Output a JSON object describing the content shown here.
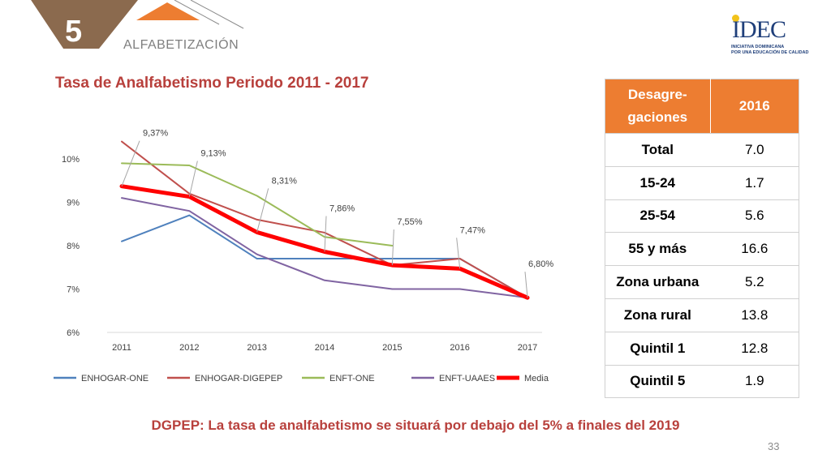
{
  "header": {
    "section_number": "5",
    "section_label": "ALFABETIZACIÓN",
    "accent_brown": "#8b6a4e",
    "accent_orange": "#ed7d31"
  },
  "logo": {
    "name": "IDEC",
    "tagline_line1": "INICIATIVA DOMINICANA",
    "tagline_line2": "POR UNA EDUCACIÓN DE CALIDAD"
  },
  "chart_title": "Tasa de Analfabetismo Periodo 2011 - 2017",
  "chart_data": {
    "type": "line",
    "title": "Tasa de Analfabetismo Periodo 2011 - 2017",
    "x": [
      "2011",
      "2012",
      "2013",
      "2014",
      "2015",
      "2016",
      "2017"
    ],
    "ylim": [
      6,
      10
    ],
    "yticks": [
      "6%",
      "7%",
      "8%",
      "9%",
      "10%"
    ],
    "grid": false,
    "legend_position": "bottom",
    "series": [
      {
        "name": "ENHOGAR-ONE",
        "color": "#4f81bd",
        "width": 2,
        "values": [
          8.1,
          8.7,
          7.7,
          7.7,
          7.7,
          7.7,
          6.8
        ]
      },
      {
        "name": "ENHOGAR-DIGEPEP",
        "color": "#c0504d",
        "width": 2,
        "values": [
          10.4,
          9.2,
          8.6,
          8.3,
          7.55,
          7.7,
          6.8
        ]
      },
      {
        "name": "ENFT-ONE",
        "color": "#9bbb59",
        "width": 2,
        "values": [
          9.9,
          9.85,
          9.15,
          8.2,
          8.0,
          null,
          null
        ]
      },
      {
        "name": "ENFT-UAAES",
        "color": "#8064a2",
        "width": 2,
        "values": [
          9.1,
          8.8,
          7.8,
          7.2,
          7.0,
          7.0,
          6.8
        ]
      },
      {
        "name": "Media",
        "color": "#ff0000",
        "width": 5,
        "values": [
          9.37,
          9.13,
          8.31,
          7.86,
          7.55,
          7.47,
          6.8
        ]
      }
    ],
    "data_labels": [
      "9,37%",
      "9,13%",
      "8,31%",
      "7,86%",
      "7,55%",
      "7,47%",
      "6,80%"
    ]
  },
  "table": {
    "header": [
      "Desagre-\ngaciones",
      "2016"
    ],
    "header_line1": "Desagre-",
    "header_line2": "gaciones",
    "header_year": "2016",
    "rows": [
      {
        "label": "Total",
        "value": "7.0"
      },
      {
        "label": "15-24",
        "value": "1.7"
      },
      {
        "label": "25-54",
        "value": "5.6"
      },
      {
        "label": "55 y más",
        "value": "16.6"
      },
      {
        "label": "Zona urbana",
        "value": "5.2"
      },
      {
        "label": "Zona rural",
        "value": "13.8"
      },
      {
        "label": "Quintil 1",
        "value": "12.8"
      },
      {
        "label": "Quintil 5",
        "value": "1.9"
      }
    ]
  },
  "conclusion": "DGPEP: La tasa de analfabetismo se situará por debajo del 5% a finales del 2019",
  "page_number": "33"
}
